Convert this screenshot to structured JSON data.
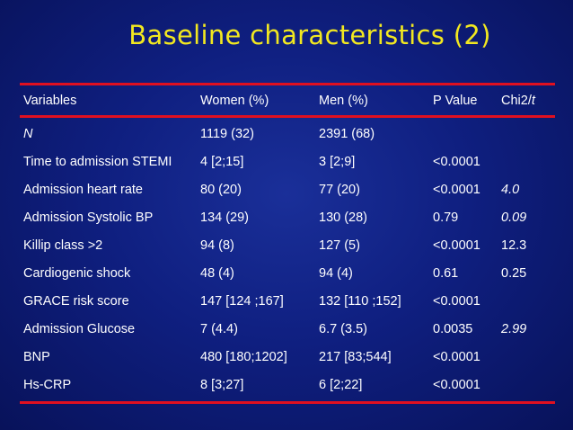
{
  "title": "Baseline characteristics (2)",
  "table": {
    "headers": [
      "Variables",
      "Women (%)",
      "Men (%)",
      "P Value",
      "Chi2/"
    ],
    "header_suffix_italic": "t",
    "rows": [
      {
        "variable": "N",
        "women": "1119 (32)",
        "men": "2391 (68)",
        "p": "",
        "chi": "",
        "variable_italic": true,
        "chi_italic": false
      },
      {
        "variable": "Time to admission STEMI",
        "women": "4 [2;15]",
        "men": "3 [2;9]",
        "p": "<0.0001",
        "chi": "",
        "variable_italic": false,
        "chi_italic": false
      },
      {
        "variable": "Admission heart rate",
        "women": "80 (20)",
        "men": "77 (20)",
        "p": "<0.0001",
        "chi": "4.0",
        "variable_italic": false,
        "chi_italic": true
      },
      {
        "variable": "Admission Systolic BP",
        "women": "134 (29)",
        "men": "130 (28)",
        "p": "0.79",
        "chi": "0.09",
        "variable_italic": false,
        "chi_italic": true
      },
      {
        "variable": "Killip class >2",
        "women": "94 (8)",
        "men": "127 (5)",
        "p": "<0.0001",
        "chi": "12.3",
        "variable_italic": false,
        "chi_italic": false
      },
      {
        "variable": "Cardiogenic shock",
        "women": "48 (4)",
        "men": "94 (4)",
        "p": "0.61",
        "chi": "0.25",
        "variable_italic": false,
        "chi_italic": false
      },
      {
        "variable": "GRACE risk score",
        "women": "147 [124 ;167]",
        "men": "132 [110 ;152]",
        "p": "<0.0001",
        "chi": "",
        "variable_italic": false,
        "chi_italic": false
      },
      {
        "variable": "Admission Glucose",
        "women": "7 (4.4)",
        "men": "6.7 (3.5)",
        "p": "0.0035",
        "chi": "2.99",
        "variable_italic": false,
        "chi_italic": true
      },
      {
        "variable": "BNP",
        "women": "480 [180;1202]",
        "men": "217 [83;544]",
        "p": "<0.0001",
        "chi": "",
        "variable_italic": false,
        "chi_italic": false
      },
      {
        "variable": "Hs-CRP",
        "women": "8 [3;27]",
        "men": "6 [2;22]",
        "p": "<0.0001",
        "chi": "",
        "variable_italic": false,
        "chi_italic": false
      }
    ]
  },
  "colors": {
    "background": "#0f1f80",
    "title": "#f2e820",
    "rule": "#e01020",
    "text": "#ffffff"
  }
}
